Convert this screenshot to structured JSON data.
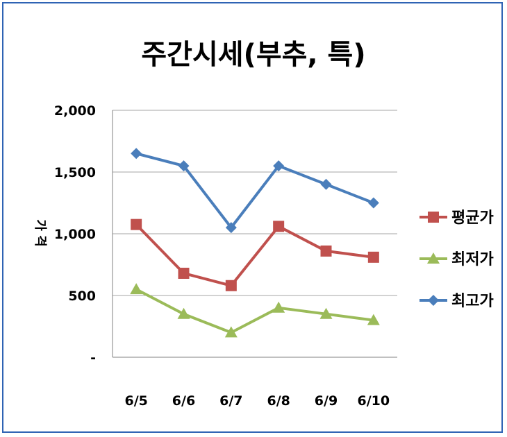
{
  "chart_data": {
    "type": "line",
    "title": "주간시세(부추, 특)",
    "ylabel": "가 격",
    "xlabel": "",
    "categories": [
      "6/5",
      "6/6",
      "6/7",
      "6/8",
      "6/9",
      "6/10"
    ],
    "y_ticks": [
      "-",
      "500",
      "1,000",
      "1,500",
      "2,000"
    ],
    "ylim": [
      0,
      2000
    ],
    "grid": true,
    "legend_position": "right",
    "series": [
      {
        "name": "평균가",
        "color": "#c0504d",
        "marker": "square",
        "values": [
          1075,
          680,
          580,
          1060,
          860,
          810
        ]
      },
      {
        "name": "최저가",
        "color": "#9bbb59",
        "marker": "triangle",
        "values": [
          550,
          350,
          200,
          400,
          350,
          300
        ]
      },
      {
        "name": "최고가",
        "color": "#4a7ebb",
        "marker": "diamond",
        "values": [
          1650,
          1550,
          1050,
          1550,
          1400,
          1250
        ]
      }
    ]
  }
}
